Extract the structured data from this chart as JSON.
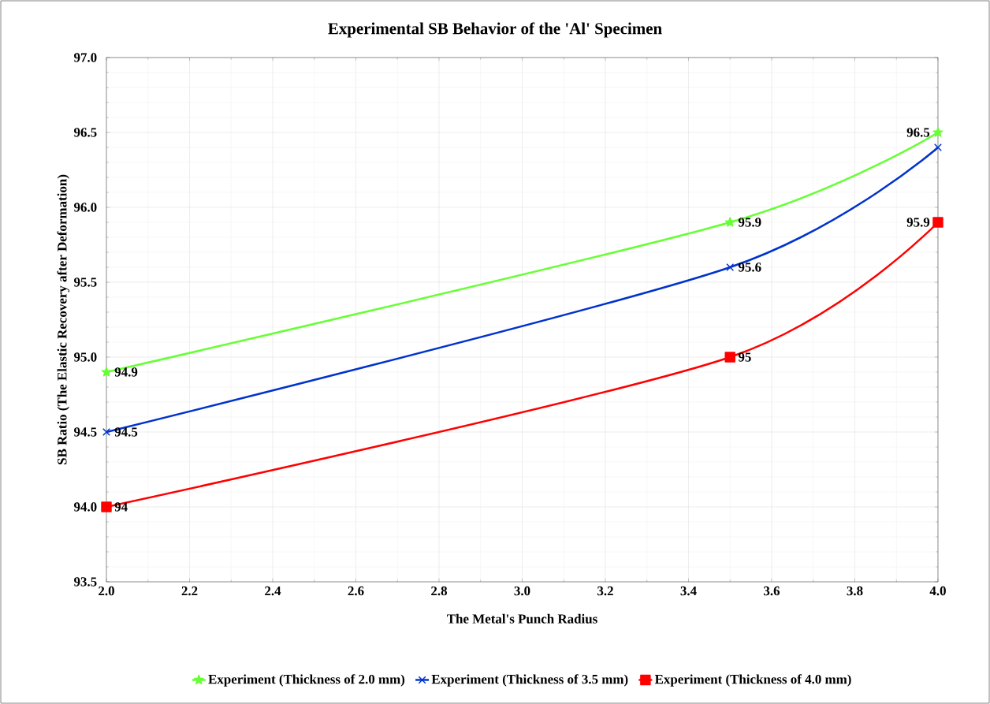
{
  "chart_data": {
    "type": "line",
    "title": "Experimental SB Behavior of the 'Al' Specimen",
    "xlabel": "The Metal's Punch Radius",
    "ylabel": "SB Ratio (The Elastic Recovery after Deformation)",
    "x": [
      2.0,
      3.5,
      4.0
    ],
    "series": [
      {
        "name": "Experiment (Thickness of 2.0 mm)",
        "color": "#66ff33",
        "marker": "star",
        "values": [
          94.9,
          95.9,
          96.5
        ],
        "value_labels": [
          "94.9",
          "95.9",
          "96.5"
        ]
      },
      {
        "name": "Experiment (Thickness of 3.5 mm)",
        "color": "#0033cc",
        "marker": "cross",
        "values": [
          94.5,
          95.6,
          96.4
        ],
        "value_labels": [
          "94.5",
          "95.6",
          null
        ]
      },
      {
        "name": "Experiment (Thickness of 4.0 mm)",
        "color": "#ff0000",
        "marker": "square",
        "values": [
          94.0,
          95.0,
          95.9
        ],
        "value_labels": [
          "94",
          "95",
          "95.9"
        ]
      }
    ],
    "xlim": [
      2.0,
      4.0
    ],
    "xticks": [
      {
        "value": 2.0,
        "label": "2.0"
      },
      2.2,
      2.4,
      2.6,
      2.8,
      {
        "value": 3.0,
        "label": "3.0"
      },
      3.2,
      3.4,
      3.6,
      3.8,
      {
        "value": 4.0,
        "label": "4.0"
      }
    ],
    "ylim": [
      93.5,
      97.0
    ],
    "yticks": [
      93.5,
      {
        "value": 94.0,
        "label": "94.0"
      },
      94.5,
      {
        "value": 95.0,
        "label": "95.0"
      },
      95.5,
      {
        "value": 96.0,
        "label": "96.0"
      },
      96.5,
      {
        "value": 97.0,
        "label": "97.0"
      }
    ],
    "grid": true,
    "legend": "bottom"
  }
}
